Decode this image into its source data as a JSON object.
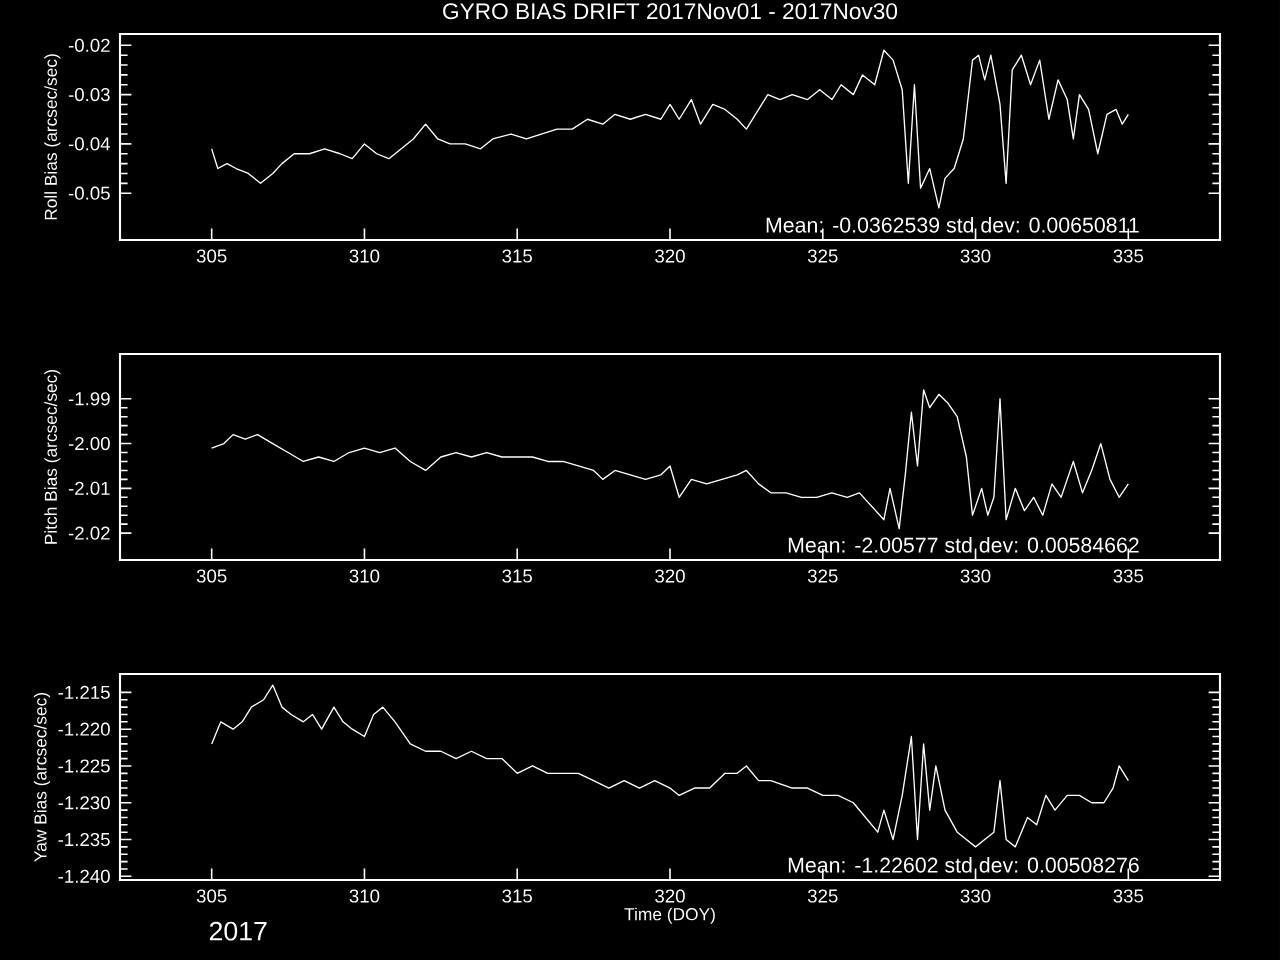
{
  "chart_data": [
    {
      "type": "line",
      "title": "GYRO BIAS DRIFT 2017Nov01 - 2017Nov30",
      "ylabel": "Roll Bias (arcsec/sec)",
      "annotations": [
        "Mean: -0.0362539 std dev: 0.00650811"
      ],
      "xlim": [
        302,
        338
      ],
      "ylim": [
        -0.0595,
        -0.0177
      ],
      "xticks": [
        305,
        310,
        315,
        320,
        325,
        330,
        335
      ],
      "yticks": [
        -0.05,
        -0.04,
        -0.03,
        -0.02
      ],
      "grid": false,
      "marker": "none",
      "line_style": "solid",
      "x": [
        305.0,
        305.2,
        305.5,
        305.8,
        306.2,
        306.6,
        307.0,
        307.3,
        307.7,
        308.2,
        308.7,
        309.2,
        309.6,
        310.0,
        310.4,
        310.8,
        311.2,
        311.6,
        312.0,
        312.4,
        312.8,
        313.3,
        313.8,
        314.2,
        314.8,
        315.3,
        315.8,
        316.3,
        316.8,
        317.3,
        317.8,
        318.2,
        318.7,
        319.2,
        319.7,
        320.0,
        320.3,
        320.7,
        321.0,
        321.4,
        321.8,
        322.2,
        322.5,
        322.9,
        323.2,
        323.6,
        324.0,
        324.5,
        324.9,
        325.3,
        325.6,
        326.0,
        326.3,
        326.7,
        327.0,
        327.3,
        327.6,
        327.8,
        328.0,
        328.2,
        328.5,
        328.8,
        329.0,
        329.3,
        329.6,
        329.9,
        330.1,
        330.3,
        330.5,
        330.8,
        331.0,
        331.2,
        331.5,
        331.8,
        332.1,
        332.4,
        332.7,
        333.0,
        333.2,
        333.4,
        333.7,
        334.0,
        334.3,
        334.6,
        334.8,
        335.0
      ],
      "series": [
        {
          "color": "#ffffff",
          "values": [
            -0.041,
            -0.045,
            -0.044,
            -0.045,
            -0.046,
            -0.048,
            -0.046,
            -0.044,
            -0.042,
            -0.042,
            -0.041,
            -0.042,
            -0.043,
            -0.04,
            -0.042,
            -0.043,
            -0.041,
            -0.039,
            -0.036,
            -0.039,
            -0.04,
            -0.04,
            -0.041,
            -0.039,
            -0.038,
            -0.039,
            -0.038,
            -0.037,
            -0.037,
            -0.035,
            -0.036,
            -0.034,
            -0.035,
            -0.034,
            -0.035,
            -0.032,
            -0.035,
            -0.031,
            -0.036,
            -0.032,
            -0.033,
            -0.035,
            -0.037,
            -0.033,
            -0.03,
            -0.031,
            -0.03,
            -0.031,
            -0.029,
            -0.031,
            -0.028,
            -0.03,
            -0.026,
            -0.028,
            -0.021,
            -0.023,
            -0.029,
            -0.048,
            -0.028,
            -0.049,
            -0.045,
            -0.053,
            -0.047,
            -0.045,
            -0.039,
            -0.023,
            -0.022,
            -0.027,
            -0.022,
            -0.032,
            -0.048,
            -0.025,
            -0.022,
            -0.028,
            -0.023,
            -0.035,
            -0.027,
            -0.031,
            -0.039,
            -0.03,
            -0.033,
            -0.042,
            -0.034,
            -0.033,
            -0.036,
            -0.034
          ]
        }
      ]
    },
    {
      "type": "line",
      "ylabel": "Pitch Bias (arcsec/sec)",
      "annotations": [
        "Mean: -2.00577 std dev: 0.00584662"
      ],
      "xlim": [
        302,
        338
      ],
      "ylim": [
        -2.026,
        -1.98
      ],
      "xticks": [
        305,
        310,
        315,
        320,
        325,
        330,
        335
      ],
      "yticks": [
        -1.99,
        {
          "value": -2.0,
          "label": "-2.00"
        },
        -2.01,
        -2.02
      ],
      "grid": false,
      "marker": "none",
      "line_style": "solid",
      "x": [
        305.0,
        305.4,
        305.7,
        306.1,
        306.5,
        307.0,
        307.5,
        308.0,
        308.5,
        309.0,
        309.5,
        310.0,
        310.5,
        311.0,
        311.5,
        312.0,
        312.5,
        313.0,
        313.5,
        314.0,
        314.5,
        315.0,
        315.5,
        316.0,
        316.5,
        317.0,
        317.5,
        317.8,
        318.2,
        318.7,
        319.2,
        319.7,
        320.0,
        320.3,
        320.7,
        321.2,
        321.7,
        322.2,
        322.5,
        322.9,
        323.3,
        323.8,
        324.3,
        324.8,
        325.3,
        325.8,
        326.2,
        326.6,
        327.0,
        327.2,
        327.5,
        327.7,
        327.9,
        328.1,
        328.3,
        328.5,
        328.8,
        329.1,
        329.4,
        329.7,
        329.9,
        330.2,
        330.4,
        330.6,
        330.8,
        331.0,
        331.3,
        331.6,
        331.9,
        332.2,
        332.5,
        332.8,
        333.0,
        333.2,
        333.5,
        333.8,
        334.1,
        334.4,
        334.7,
        335.0
      ],
      "series": [
        {
          "color": "#ffffff",
          "values": [
            -2.001,
            -2.0,
            -1.998,
            -1.999,
            -1.998,
            -2.0,
            -2.002,
            -2.004,
            -2.003,
            -2.004,
            -2.002,
            -2.001,
            -2.002,
            -2.001,
            -2.004,
            -2.006,
            -2.003,
            -2.002,
            -2.003,
            -2.002,
            -2.003,
            -2.003,
            -2.003,
            -2.004,
            -2.004,
            -2.005,
            -2.006,
            -2.008,
            -2.006,
            -2.007,
            -2.008,
            -2.007,
            -2.005,
            -2.012,
            -2.008,
            -2.009,
            -2.008,
            -2.007,
            -2.006,
            -2.009,
            -2.011,
            -2.011,
            -2.012,
            -2.012,
            -2.011,
            -2.012,
            -2.011,
            -2.014,
            -2.017,
            -2.01,
            -2.019,
            -2.007,
            -1.993,
            -2.005,
            -1.988,
            -1.992,
            -1.989,
            -1.991,
            -1.994,
            -2.003,
            -2.016,
            -2.01,
            -2.016,
            -2.012,
            -1.99,
            -2.017,
            -2.01,
            -2.015,
            -2.012,
            -2.016,
            -2.009,
            -2.012,
            -2.008,
            -2.004,
            -2.011,
            -2.006,
            -2.0,
            -2.008,
            -2.012,
            -2.009
          ]
        }
      ]
    },
    {
      "type": "line",
      "xlabel": "Time (DOY)",
      "ylabel": "Yaw Bias (arcsec/sec)",
      "annotations": [
        "Mean: -1.22602 std dev: 0.00508276",
        "2017"
      ],
      "xlim": [
        302,
        338
      ],
      "ylim": [
        -1.2405,
        -1.2125
      ],
      "xticks": [
        305,
        310,
        315,
        320,
        325,
        330,
        335
      ],
      "yticks": [
        -1.215,
        {
          "value": -1.22,
          "label": "-1.220"
        },
        -1.225,
        {
          "value": -1.23,
          "label": "-1.230"
        },
        -1.235,
        {
          "value": -1.24,
          "label": "-1.240"
        }
      ],
      "grid": false,
      "marker": "none",
      "line_style": "solid",
      "x": [
        305.0,
        305.3,
        305.7,
        306.0,
        306.3,
        306.7,
        307.0,
        307.3,
        307.6,
        308.0,
        308.3,
        308.6,
        309.0,
        309.3,
        309.6,
        310.0,
        310.3,
        310.6,
        311.0,
        311.5,
        312.0,
        312.5,
        313.0,
        313.5,
        314.0,
        314.5,
        315.0,
        315.5,
        316.0,
        316.5,
        317.0,
        317.5,
        318.0,
        318.5,
        319.0,
        319.5,
        320.0,
        320.3,
        320.8,
        321.3,
        321.8,
        322.2,
        322.5,
        322.9,
        323.3,
        324.0,
        324.5,
        325.0,
        325.5,
        326.0,
        326.4,
        326.8,
        327.0,
        327.3,
        327.6,
        327.9,
        328.1,
        328.3,
        328.5,
        328.7,
        329.0,
        329.4,
        329.7,
        330.0,
        330.3,
        330.6,
        330.8,
        331.0,
        331.3,
        331.7,
        332.0,
        332.3,
        332.6,
        333.0,
        333.4,
        333.8,
        334.2,
        334.5,
        334.7,
        335.0
      ],
      "series": [
        {
          "color": "#ffffff",
          "values": [
            -1.222,
            -1.219,
            -1.22,
            -1.219,
            -1.217,
            -1.216,
            -1.214,
            -1.217,
            -1.218,
            -1.219,
            -1.218,
            -1.22,
            -1.217,
            -1.219,
            -1.22,
            -1.221,
            -1.218,
            -1.217,
            -1.219,
            -1.222,
            -1.223,
            -1.223,
            -1.224,
            -1.223,
            -1.224,
            -1.224,
            -1.226,
            -1.225,
            -1.226,
            -1.226,
            -1.226,
            -1.227,
            -1.228,
            -1.227,
            -1.228,
            -1.227,
            -1.228,
            -1.229,
            -1.228,
            -1.228,
            -1.226,
            -1.226,
            -1.225,
            -1.227,
            -1.227,
            -1.228,
            -1.228,
            -1.229,
            -1.229,
            -1.23,
            -1.232,
            -1.234,
            -1.231,
            -1.235,
            -1.229,
            -1.221,
            -1.235,
            -1.222,
            -1.231,
            -1.225,
            -1.231,
            -1.234,
            -1.235,
            -1.236,
            -1.235,
            -1.234,
            -1.227,
            -1.235,
            -1.236,
            -1.232,
            -1.233,
            -1.229,
            -1.231,
            -1.229,
            -1.229,
            -1.23,
            -1.23,
            -1.228,
            -1.225,
            -1.227
          ]
        }
      ]
    }
  ]
}
